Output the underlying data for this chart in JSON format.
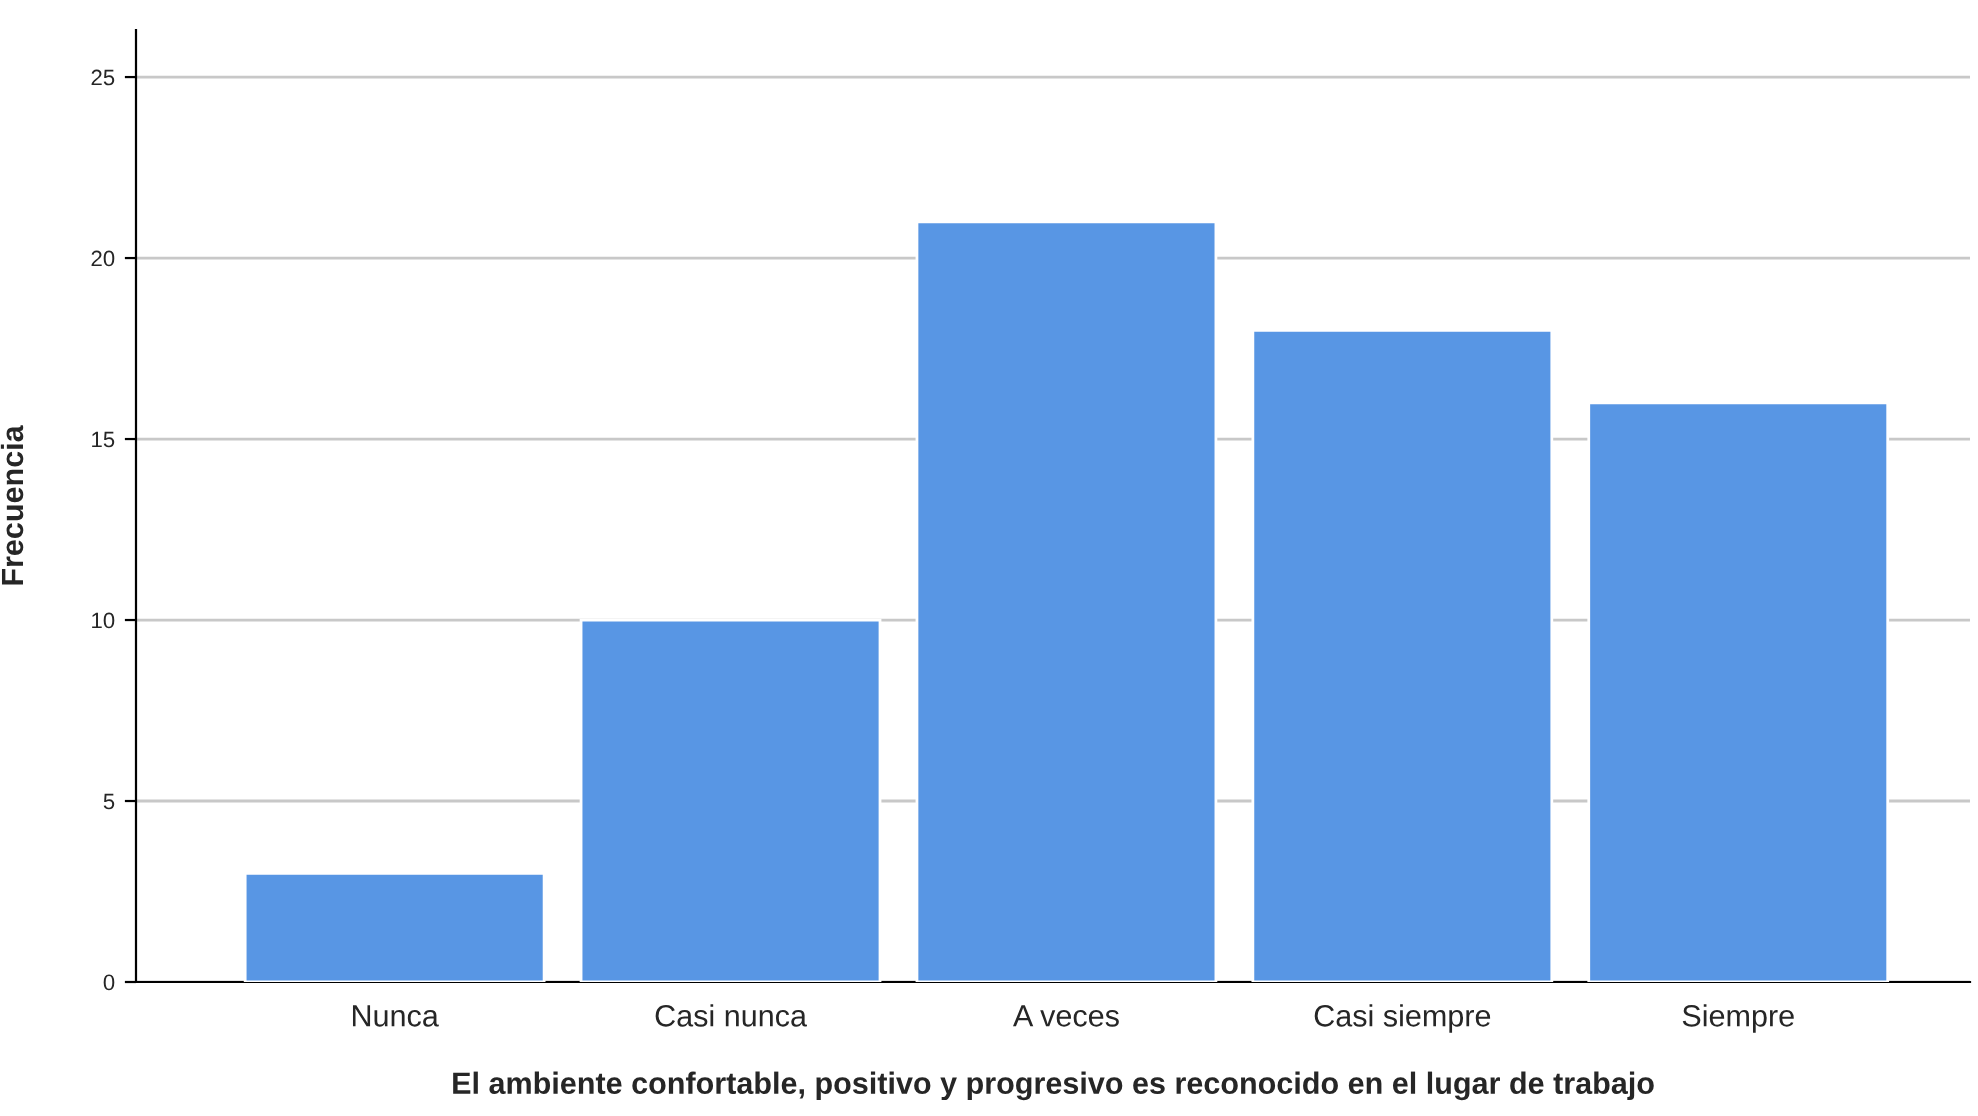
{
  "chart_data": {
    "type": "bar",
    "xlabel": "El ambiente confortable, positivo y progresivo es reconocido en el lugar de trabajo",
    "ylabel": "Frecuencia",
    "categories": [
      "Nunca",
      "Casi nunca",
      "A veces",
      "Casi siempre",
      "Siempre"
    ],
    "values": [
      3,
      10,
      21,
      18,
      16
    ],
    "color": "#5896e4",
    "ylim": [
      0,
      26.3
    ],
    "yticks": [
      0,
      5,
      10,
      15,
      20,
      25
    ],
    "grid": "y"
  }
}
